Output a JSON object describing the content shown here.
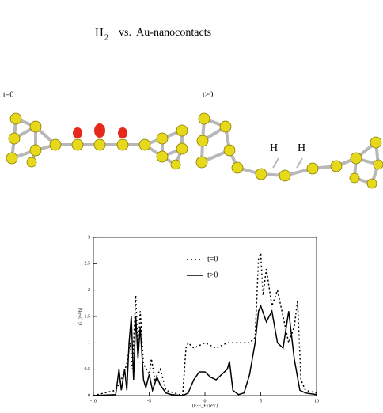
{
  "title": {
    "molecule": "H",
    "subscript": "2",
    "rest": "vs.  Au-nanocontacts"
  },
  "panels": [
    {
      "label": "t=0"
    },
    {
      "label": "t>0",
      "atoms": [
        "H",
        "H"
      ]
    }
  ],
  "chart_data": {
    "type": "line",
    "x_label": "(E-E_F) [eV]",
    "y_label": "G [2e²/h]",
    "xlim": [
      -10,
      10
    ],
    "xticks": [
      -10,
      -5,
      0,
      5,
      10
    ],
    "ylim": [
      0,
      3
    ],
    "yticks": [
      0,
      0.5,
      1,
      1.5,
      2,
      2.5,
      3
    ],
    "series": [
      {
        "name": "t=0",
        "color": "#000000",
        "dash": "2,3",
        "x": [
          -10,
          -8,
          -7.5,
          -7,
          -6.7,
          -6.5,
          -6.2,
          -6,
          -5.8,
          -5.5,
          -5,
          -4.8,
          -4.5,
          -4,
          -3.5,
          -2,
          -1.7,
          -1.5,
          -1,
          0,
          1,
          2,
          3,
          4,
          4.5,
          4.8,
          5,
          5.2,
          5.5,
          6,
          6.5,
          7,
          7.5,
          8,
          8.3,
          8.6,
          9,
          10
        ],
        "values": [
          0,
          0.1,
          0.3,
          0.6,
          1.0,
          0.5,
          1.9,
          0.8,
          1.6,
          0.6,
          0.4,
          0.7,
          0.3,
          0.5,
          0.1,
          0,
          0.9,
          1.0,
          0.9,
          1.0,
          0.9,
          1.0,
          1.0,
          1.0,
          1.1,
          2.6,
          2.7,
          1.9,
          2.4,
          1.7,
          2.0,
          1.5,
          1.0,
          1.3,
          1.8,
          0.3,
          0.1,
          0.05
        ]
      },
      {
        "name": "t>0",
        "color": "#000000",
        "dash": "none",
        "x": [
          -10,
          -8,
          -7.7,
          -7.5,
          -7.2,
          -7,
          -6.8,
          -6.6,
          -6.4,
          -6.2,
          -6,
          -5.8,
          -5.5,
          -5.3,
          -5,
          -4.7,
          -4.3,
          -4,
          -3.5,
          -3,
          -2,
          -1.5,
          -1,
          -0.5,
          0,
          0.5,
          1,
          1.5,
          2,
          2.2,
          2.5,
          3,
          3.5,
          4,
          4.5,
          4.8,
          5,
          5.5,
          6,
          6.5,
          7,
          7.5,
          8,
          8.5,
          9,
          10
        ],
        "values": [
          0,
          0.02,
          0.5,
          0.1,
          0.5,
          0.1,
          1.0,
          1.5,
          0.3,
          1.5,
          0.7,
          1.3,
          0.3,
          0.15,
          0.4,
          0.1,
          0.35,
          0.2,
          0.05,
          0.02,
          0,
          0.05,
          0.3,
          0.45,
          0.45,
          0.35,
          0.3,
          0.4,
          0.5,
          0.65,
          0.1,
          0.02,
          0.05,
          0.4,
          1.0,
          1.6,
          1.7,
          1.4,
          1.6,
          1.0,
          0.9,
          1.6,
          0.7,
          0.1,
          0.05,
          0.02
        ]
      }
    ]
  }
}
